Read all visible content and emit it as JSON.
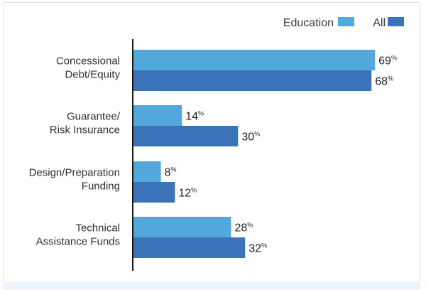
{
  "chart_data": {
    "type": "bar",
    "orientation": "horizontal",
    "categories": [
      [
        "Concessional",
        "Debt/Equity"
      ],
      [
        "Guarantee/",
        "Risk Insurance"
      ],
      [
        "Design/Preparation",
        "Funding"
      ],
      [
        "Technical",
        "Assistance Funds"
      ]
    ],
    "series": [
      {
        "name": "Education",
        "color": "#52a7db",
        "values": [
          69,
          14,
          8,
          28
        ]
      },
      {
        "name": "All",
        "color": "#3a73b8",
        "values": [
          68,
          30,
          12,
          32
        ]
      }
    ],
    "value_suffix": "%",
    "xlim": [
      0,
      72
    ],
    "legend": {
      "position": "top-right"
    },
    "grid": false
  }
}
